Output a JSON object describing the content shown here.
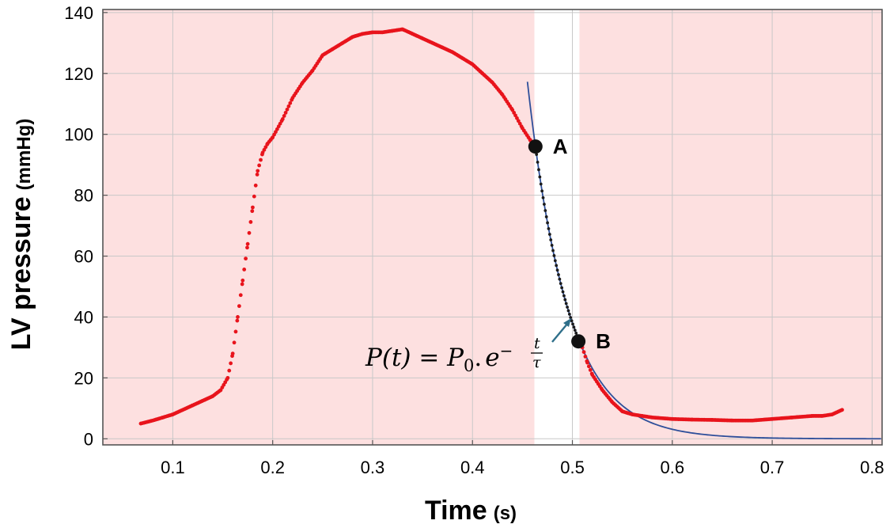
{
  "chart_data": {
    "type": "scatter",
    "title": "",
    "xlabel": "Time",
    "xlabel_unit": "(s)",
    "ylabel": "LV pressure",
    "ylabel_unit": "(mmHg)",
    "xlim": [
      0.03,
      0.81
    ],
    "ylim": [
      -2,
      141
    ],
    "x_ticks": [
      0.1,
      0.2,
      0.3,
      0.4,
      0.5,
      0.6,
      0.7,
      0.8
    ],
    "x_tick_labels": [
      "0.1",
      "0.2",
      "0.3",
      "0.4",
      "0.5",
      "0.6",
      "0.7",
      "0.8"
    ],
    "y_ticks": [
      0,
      20,
      40,
      60,
      80,
      100,
      120,
      140
    ],
    "y_tick_labels": [
      "0",
      "20",
      "40",
      "60",
      "80",
      "100",
      "120",
      "140"
    ],
    "grid": true,
    "colors": {
      "shade": "#fde0e0",
      "pressure_points": "#e8141c",
      "fit_points": "#1b1b1b",
      "fit_curve": "#2e4f9a",
      "markers": "#111111",
      "arrow": "#2f6f8a",
      "grid": "#c8c8c8",
      "frame": "#555555"
    },
    "shaded_regions": [
      {
        "x_start": 0.03,
        "x_end": 0.462
      },
      {
        "x_start": 0.507,
        "x_end": 0.81
      }
    ],
    "highlight_band": {
      "x_start": 0.462,
      "x_end": 0.507
    },
    "pressure_series": {
      "x": [
        0.068,
        0.08,
        0.09,
        0.1,
        0.11,
        0.12,
        0.13,
        0.14,
        0.148,
        0.155,
        0.16,
        0.165,
        0.17,
        0.175,
        0.18,
        0.185,
        0.19,
        0.195,
        0.2,
        0.21,
        0.22,
        0.23,
        0.24,
        0.25,
        0.26,
        0.27,
        0.28,
        0.29,
        0.3,
        0.31,
        0.32,
        0.33,
        0.34,
        0.35,
        0.36,
        0.37,
        0.38,
        0.39,
        0.4,
        0.41,
        0.42,
        0.43,
        0.44,
        0.45,
        0.458,
        0.463,
        0.507,
        0.51,
        0.515,
        0.52,
        0.53,
        0.54,
        0.55,
        0.56,
        0.57,
        0.58,
        0.6,
        0.62,
        0.64,
        0.66,
        0.68,
        0.7,
        0.72,
        0.74,
        0.75,
        0.76,
        0.77
      ],
      "y": [
        5,
        6,
        7,
        8,
        9.5,
        11,
        12.5,
        14,
        16,
        20,
        28,
        40,
        52,
        64,
        76,
        88,
        94,
        97,
        99,
        105,
        112,
        117,
        121,
        126,
        128,
        130,
        132,
        133,
        133.5,
        133.5,
        134,
        134.5,
        133,
        131.5,
        130,
        128.5,
        127,
        125,
        123,
        120,
        117,
        113,
        108,
        102,
        98,
        96,
        33,
        30,
        25,
        21,
        16,
        12,
        9,
        8,
        7.5,
        7,
        6.5,
        6.3,
        6.2,
        6,
        6,
        6.5,
        7,
        7.5,
        7.5,
        8,
        9.5
      ],
      "label": ""
    },
    "fit_segment_points": {
      "x_start": 0.463,
      "x_end": 0.507
    },
    "fit_curve": {
      "x_start": 0.455,
      "x_end": 0.81,
      "t0": 0.463,
      "P0": 96,
      "tau": 0.04
    },
    "markers": [
      {
        "label": "A",
        "x": 0.463,
        "y": 96
      },
      {
        "label": "B",
        "x": 0.506,
        "y": 32
      }
    ],
    "annotation": {
      "lhs": "P(t) = P",
      "subscript": "0",
      "dot": ".",
      "base": "e",
      "exponent_sign": "−",
      "exponent_num": "t",
      "exponent_den": "τ"
    }
  }
}
